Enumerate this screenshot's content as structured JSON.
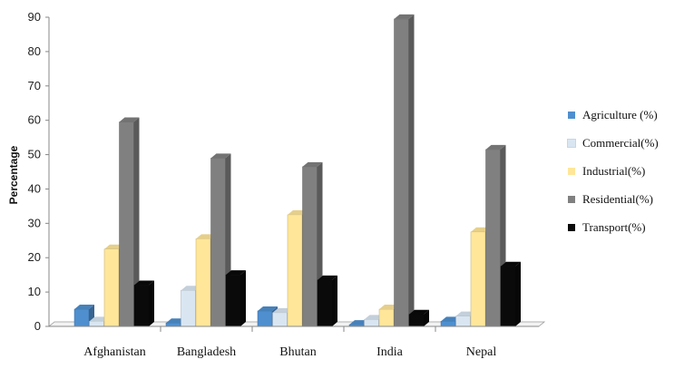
{
  "chart_data": {
    "type": "bar",
    "title": "",
    "xlabel": "",
    "ylabel": "Percentage",
    "ylim": [
      0,
      90
    ],
    "yticks": [
      "0",
      "10",
      "20",
      "30",
      "40",
      "50",
      "60",
      "70",
      "80",
      "90"
    ],
    "grid": false,
    "legend_position": "right",
    "categories": [
      "Afghanistan",
      "Bangladesh",
      "Bhutan",
      "India",
      "Nepal"
    ],
    "series": [
      {
        "name": "Agriculture (%)",
        "color": "#4f8fcf",
        "values": [
          5,
          1,
          4.5,
          0.5,
          1.5
        ]
      },
      {
        "name": "Commercial(%)",
        "color": "#d9e6f2",
        "values": [
          1.5,
          10.5,
          4,
          2,
          3
        ]
      },
      {
        "name": "Industrial(%)",
        "color": "#ffe699",
        "values": [
          22.5,
          25.5,
          32.5,
          5,
          27.5
        ]
      },
      {
        "name": "Residential(%)",
        "color": "#808080",
        "values": [
          59.5,
          49,
          46.5,
          89.5,
          51.5
        ]
      },
      {
        "name": "Transport(%)",
        "color": "#0a0a0a",
        "values": [
          12,
          15,
          13.5,
          3.5,
          17.5
        ]
      }
    ]
  }
}
